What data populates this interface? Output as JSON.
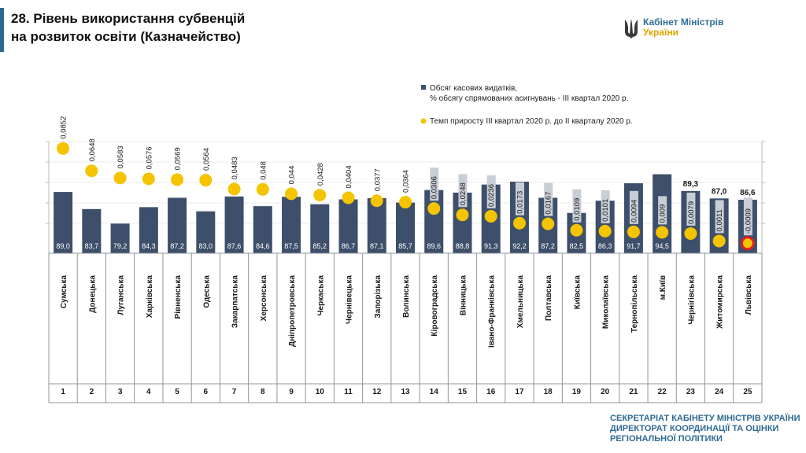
{
  "header": {
    "title_line1": "28. Рівень використання субвенцій",
    "title_line2": "на розвиток освіти (Казначейство)"
  },
  "logo": {
    "line1": "Кабінет Міністрів",
    "line2": "України",
    "icon": "trident-icon"
  },
  "footer": {
    "line1": "СЕКРЕТАРІАТ КАБІНЕТУ МІНІСТРІВ УКРАЇНИ",
    "line2": "ДИРЕКТОРАТ КООРДИНАЦІЇ ТА ОЦІНКИ",
    "line3": "РЕГІОНАЛЬНОЇ ПОЛІТИКИ"
  },
  "colors": {
    "bar": "#3d4f6a",
    "dot": "#f5c400",
    "highlight_ring": "#e02020",
    "footer_text": "#2f6a93"
  },
  "chart_data": {
    "type": "bar",
    "categories": [
      "Сумська",
      "Донецька",
      "Луганська",
      "Харківська",
      "Рівненська",
      "Одеська",
      "Закарпатська",
      "Херсонська",
      "Дніпропетровська",
      "Черкаська",
      "Чернівецька",
      "Запорізька",
      "Волинська",
      "Кіровоградська",
      "Вінницька",
      "Івано-Франківська",
      "Хмельницька",
      "Полтавська",
      "Київська",
      "Миколаївська",
      "Тернопільська",
      "м.Київ",
      "Чернігівська",
      "Житомирська",
      "Львівська"
    ],
    "ranks": [
      "1",
      "2",
      "3",
      "4",
      "5",
      "6",
      "7",
      "8",
      "9",
      "10",
      "11",
      "12",
      "13",
      "14",
      "15",
      "16",
      "17",
      "18",
      "19",
      "20",
      "21",
      "22",
      "23",
      "24",
      "25"
    ],
    "series": [
      {
        "name": "Обсяг касових видатків, % обсягу спрямованих асигнувань - ІІІ квартал 2020 р.",
        "values": [
          89.0,
          83.7,
          79.2,
          84.3,
          87.2,
          83.0,
          87.6,
          84.6,
          87.5,
          85.2,
          86.7,
          87.1,
          85.7,
          89.6,
          88.8,
          91.3,
          92.2,
          87.2,
          82.5,
          86.3,
          91.7,
          94.5,
          89.3,
          87.0,
          86.6
        ],
        "labels": [
          "89,0",
          "83,7",
          "79,2",
          "84,3",
          "87,2",
          "83,0",
          "87,6",
          "84,6",
          "87,5",
          "85,2",
          "86,7",
          "87,1",
          "85,7",
          "89,6",
          "88,8",
          "91,3",
          "92,2",
          "87,2",
          "82,5",
          "86,3",
          "91,7",
          "94,5",
          "89,3",
          "87,0",
          "86,6"
        ]
      },
      {
        "name": "Темп приросту ІІІ квартал 2020 р. до ІІ кварталу 2020 р.",
        "values": [
          0.0852,
          0.0648,
          0.0583,
          0.0576,
          0.0569,
          0.0564,
          0.0483,
          0.048,
          0.044,
          0.0428,
          0.0404,
          0.0377,
          0.0364,
          0.0306,
          0.0248,
          0.0236,
          0.0173,
          0.0167,
          0.0109,
          0.0101,
          0.0094,
          0.009,
          0.0079,
          0.0011,
          -0.0009
        ],
        "labels": [
          "0,0852",
          "0,0648",
          "0,0583",
          "0,0576",
          "0,0569",
          "0,0564",
          "0,0483",
          "0,048",
          "0,044",
          "0,0428",
          "0,0404",
          "0,0377",
          "0,0364",
          "0,0306",
          "0,0248",
          "0,0236",
          "0,0173",
          "0,0167",
          "0,0109",
          "0,0101",
          "0,0094",
          "0,009",
          "0,0079",
          "0,0011",
          "-0,0009"
        ]
      }
    ],
    "highlight_index": 24,
    "legend_position": "top-right"
  }
}
